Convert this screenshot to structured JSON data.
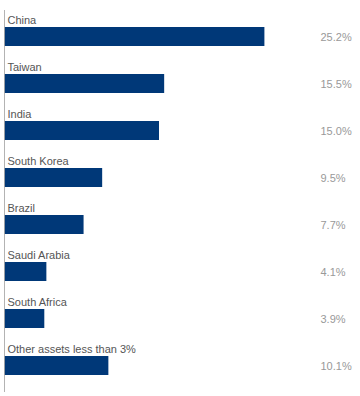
{
  "chart_data": {
    "type": "bar",
    "orientation": "horizontal",
    "categories": [
      "China",
      "Taiwan",
      "India",
      "South Korea",
      "Brazil",
      "Saudi Arabia",
      "South Africa",
      "Other assets less than 3%"
    ],
    "values": [
      25.2,
      15.5,
      15.0,
      9.5,
      7.7,
      4.1,
      3.9,
      10.1
    ],
    "value_labels": [
      "25.2%",
      "15.5%",
      "15.0%",
      "9.5%",
      "7.7%",
      "4.1%",
      "3.9%",
      "10.1%"
    ],
    "color": "#003878",
    "xlim": [
      0,
      30
    ],
    "data_labels": true,
    "grid": false
  }
}
